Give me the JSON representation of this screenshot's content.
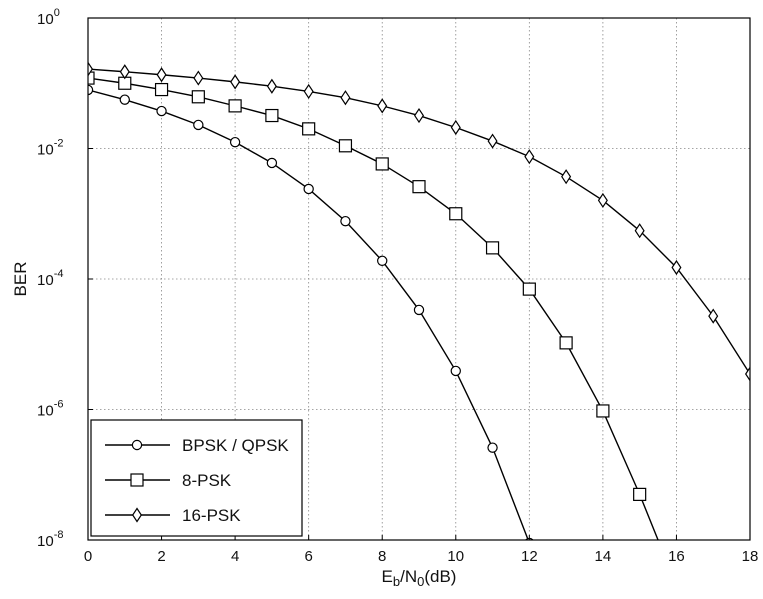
{
  "chart_data": {
    "type": "line",
    "xlabel": {
      "main": "E",
      "sub1": "b",
      "mid": "/N",
      "sub2": "0",
      "tail": "(dB)"
    },
    "ylabel": "BER",
    "xlim": [
      0,
      18
    ],
    "ylim": [
      1e-08,
      1
    ],
    "yscale": "log",
    "grid": true,
    "legend_position": "bottom-left",
    "x_ticks": [
      "0",
      "2",
      "4",
      "6",
      "8",
      "10",
      "12",
      "14",
      "16",
      "18"
    ],
    "y_ticks": [
      {
        "base": "10",
        "exp": "0"
      },
      {
        "base": "10",
        "exp": "-2"
      },
      {
        "base": "10",
        "exp": "-4"
      },
      {
        "base": "10",
        "exp": "-6"
      },
      {
        "base": "10",
        "exp": "-8"
      }
    ],
    "series": [
      {
        "name": "BPSK / QPSK",
        "marker": "circle",
        "x": [
          0,
          1,
          2,
          3,
          4,
          5,
          6,
          7,
          8,
          9,
          10,
          11,
          12
        ],
        "y": [
          0.079,
          0.056,
          0.0375,
          0.023,
          0.0125,
          0.006,
          0.0024,
          0.00077,
          0.00019,
          3.36e-05,
          3.9e-06,
          2.6e-07,
          9e-09
        ]
      },
      {
        "name": "8-PSK",
        "marker": "square",
        "x": [
          0,
          1,
          2,
          3,
          4,
          5,
          6,
          7,
          8,
          9,
          10,
          11,
          12,
          13,
          14,
          15,
          16
        ],
        "y": [
          0.12,
          0.1,
          0.08,
          0.062,
          0.045,
          0.032,
          0.02,
          0.011,
          0.0058,
          0.0026,
          0.001,
          0.0003,
          7e-05,
          1.05e-05,
          9.5e-07,
          5e-08,
          2e-09
        ]
      },
      {
        "name": "16-PSK",
        "marker": "diamond",
        "x": [
          0,
          1,
          2,
          3,
          4,
          5,
          6,
          7,
          8,
          9,
          10,
          11,
          12,
          13,
          14,
          15,
          16,
          17,
          18
        ],
        "y": [
          0.165,
          0.15,
          0.135,
          0.12,
          0.105,
          0.09,
          0.075,
          0.06,
          0.045,
          0.032,
          0.021,
          0.013,
          0.0075,
          0.0037,
          0.0016,
          0.00055,
          0.00015,
          2.7e-05,
          3.5e-06
        ]
      }
    ]
  }
}
